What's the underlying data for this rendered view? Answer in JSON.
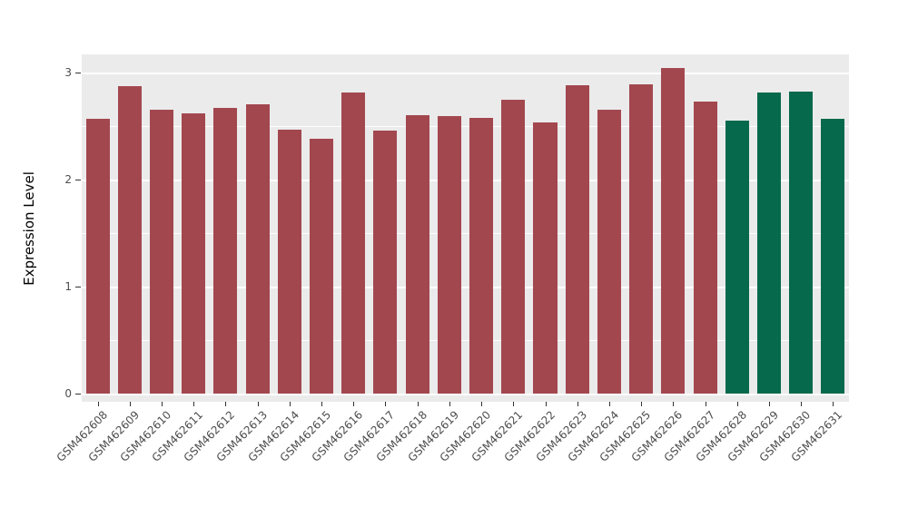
{
  "chart": {
    "ylabel": "Expression Level"
  },
  "chart_data": {
    "type": "bar",
    "title": "",
    "xlabel": "",
    "ylabel": "Expression Level",
    "categories": [
      "GSM462608",
      "GSM462609",
      "GSM462610",
      "GSM462611",
      "GSM462612",
      "GSM462613",
      "GSM462614",
      "GSM462615",
      "GSM462616",
      "GSM462617",
      "GSM462618",
      "GSM462619",
      "GSM462620",
      "GSM462621",
      "GSM462622",
      "GSM462623",
      "GSM462624",
      "GSM462625",
      "GSM462626",
      "GSM462627",
      "GSM462628",
      "GSM462629",
      "GSM462630",
      "GSM462631"
    ],
    "values": [
      2.57,
      2.87,
      2.65,
      2.62,
      2.67,
      2.7,
      2.47,
      2.38,
      2.81,
      2.46,
      2.6,
      2.59,
      2.58,
      2.75,
      2.53,
      2.88,
      2.65,
      2.89,
      3.04,
      2.73,
      2.55,
      2.81,
      2.82,
      2.57
    ],
    "color_group": [
      0,
      0,
      0,
      0,
      0,
      0,
      0,
      0,
      0,
      0,
      0,
      0,
      0,
      0,
      0,
      0,
      0,
      0,
      0,
      0,
      1,
      1,
      1,
      1
    ],
    "bar_colors": [
      "#A3474F",
      "#07694C"
    ],
    "ylim": [
      0,
      3.2
    ],
    "y_ticks": [
      0,
      1,
      2,
      3
    ],
    "y_minor_ticks": [
      0.5,
      1.5,
      2.5
    ],
    "grid": true,
    "legend": "none",
    "panel_bg": "#EBEBEB",
    "grid_color": "#FFFFFF",
    "tick_label_color": "#4D4D4D",
    "bar_width_fraction": 0.74
  }
}
